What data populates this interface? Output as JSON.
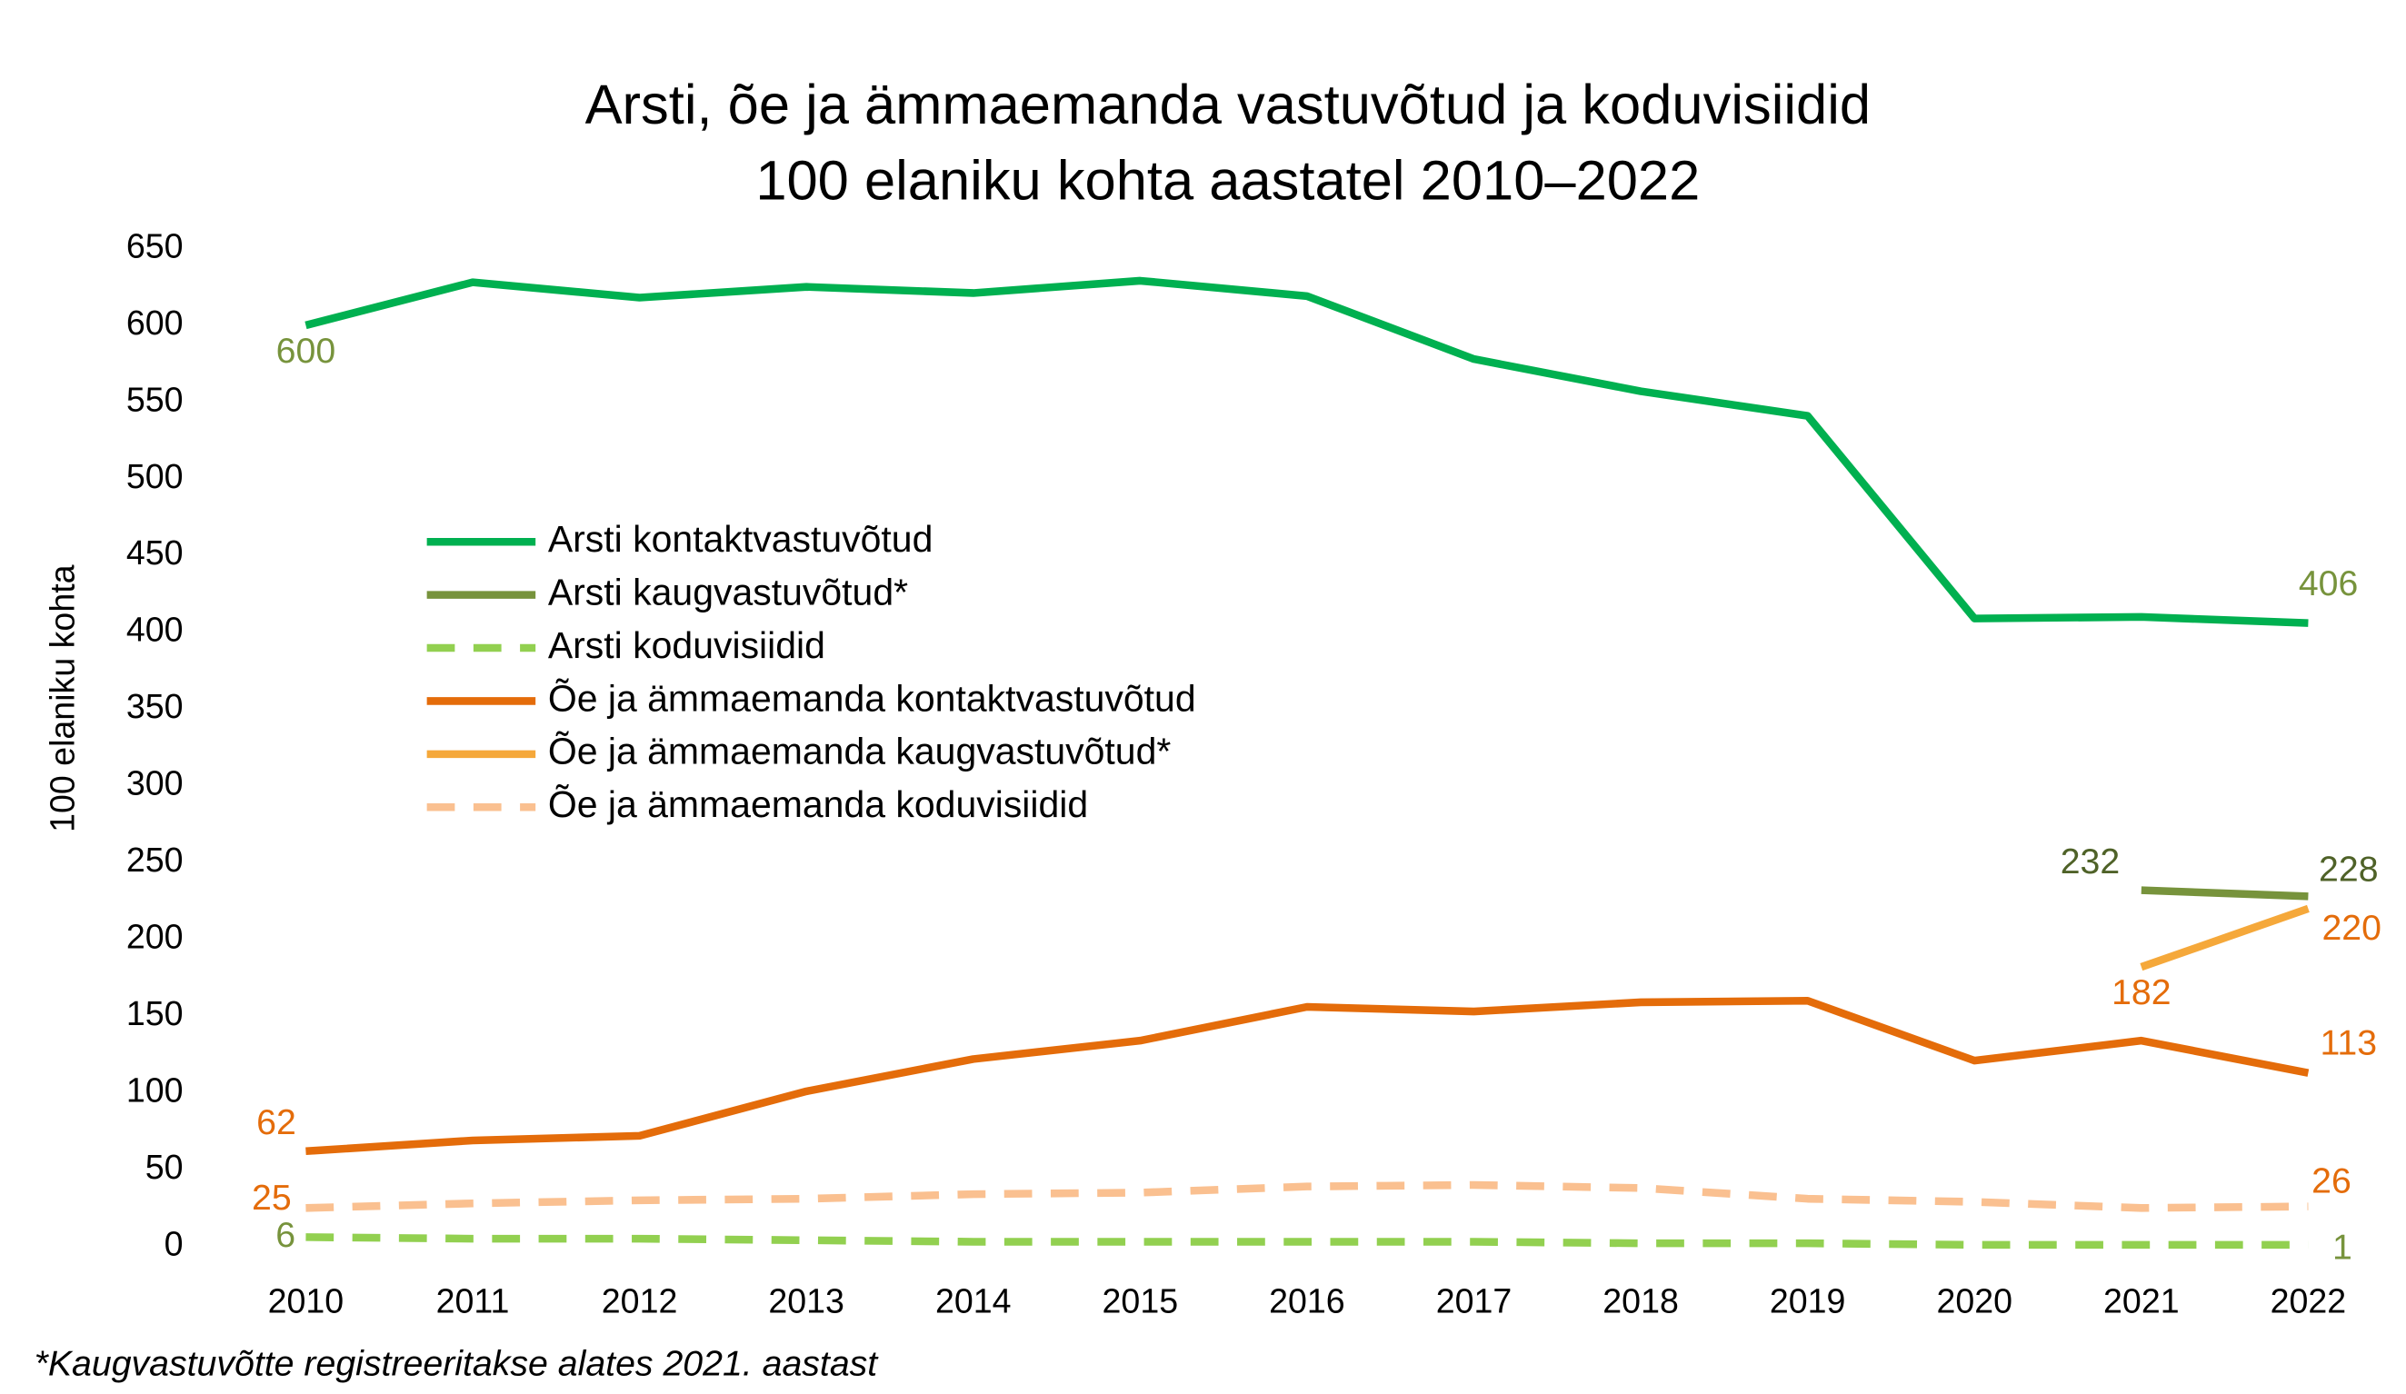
{
  "chart_data": {
    "type": "line",
    "title": [
      "Arsti, õe ja ämmaemanda vastuvõtud ja koduvisiidid",
      "100 elaniku kohta aastatel 2010–2022"
    ],
    "y_label": "100 elaniku kohta",
    "footnote": "*Kaugvastuvõtte registreeritakse alates 2021. aastast",
    "categories": [
      "2010",
      "2011",
      "2012",
      "2013",
      "2014",
      "2015",
      "2016",
      "2017",
      "2018",
      "2019",
      "2020",
      "2021",
      "2022"
    ],
    "ylim": [
      0,
      650
    ],
    "yticks": [
      0,
      50,
      100,
      150,
      200,
      250,
      300,
      350,
      400,
      450,
      500,
      550,
      600,
      650
    ],
    "grid": false,
    "legend": "upper-left",
    "series": [
      {
        "name": "Arsti kontaktvastuvõtud",
        "color": "#00b050",
        "dashed": false,
        "values": [
          600,
          628,
          618,
          625,
          621,
          629,
          619,
          578,
          557,
          541,
          409,
          410,
          406
        ]
      },
      {
        "name": "Arsti kaugvastuvõtud*",
        "color": "#77933c",
        "dashed": false,
        "values": [
          null,
          null,
          null,
          null,
          null,
          null,
          null,
          null,
          null,
          null,
          null,
          232,
          228
        ]
      },
      {
        "name": "Arsti koduvisiidid",
        "color": "#92d050",
        "dashed": true,
        "values": [
          6,
          5,
          5,
          4,
          3,
          3,
          3,
          3,
          2,
          2,
          1,
          1,
          1
        ]
      },
      {
        "name": "Õe ja ämmaemanda kontaktvastuvõtud",
        "color": "#e46c0a",
        "dashed": false,
        "values": [
          62,
          69,
          72,
          101,
          122,
          134,
          156,
          153,
          159,
          160,
          121,
          134,
          113
        ]
      },
      {
        "name": "Õe ja ämmaemanda kaugvastuvõtud*",
        "color": "#f5a83a",
        "dashed": false,
        "values": [
          null,
          null,
          null,
          null,
          null,
          null,
          null,
          null,
          null,
          null,
          null,
          182,
          220
        ]
      },
      {
        "name": "Õe ja ämmaemanda koduvisiidid",
        "color": "#fac090",
        "dashed": true,
        "values": [
          25,
          28,
          30,
          31,
          34,
          35,
          39,
          40,
          38,
          31,
          29,
          25,
          26
        ]
      }
    ]
  }
}
